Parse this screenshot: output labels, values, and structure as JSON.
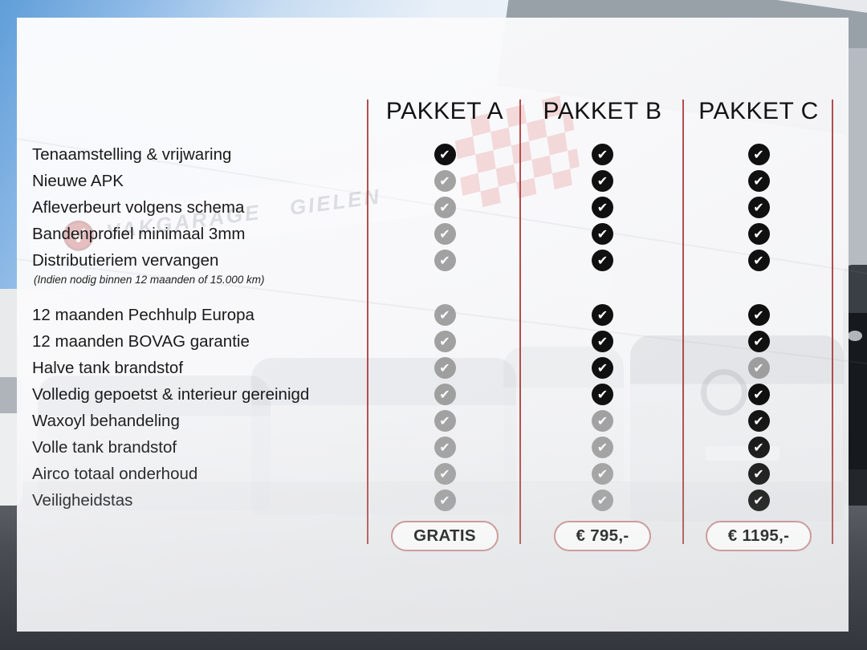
{
  "background": {
    "sign_text": "VAKGARAGE GIELEN",
    "sign_badge_letter": "V"
  },
  "table": {
    "columns": [
      "PAKKET A",
      "PAKKET B",
      "PAKKET C"
    ],
    "rows": [
      {
        "label": "Tenaamstelling & vrijwaring",
        "included": [
          true,
          true,
          true
        ]
      },
      {
        "label": "Nieuwe APK",
        "included": [
          false,
          true,
          true
        ]
      },
      {
        "label": "Afleverbeurt volgens schema",
        "included": [
          false,
          true,
          true
        ]
      },
      {
        "label": "Bandenprofiel minimaal 3mm",
        "included": [
          false,
          true,
          true
        ]
      },
      {
        "label": "Distributieriem vervangen",
        "note": "(Indien nodig binnen 12 maanden of 15.000 km)",
        "included": [
          false,
          true,
          true
        ]
      },
      {
        "label": "12 maanden Pechhulp Europa",
        "included": [
          false,
          true,
          true
        ]
      },
      {
        "label": "12 maanden BOVAG garantie",
        "included": [
          false,
          true,
          true
        ]
      },
      {
        "label": "Halve tank brandstof",
        "included": [
          false,
          true,
          false
        ]
      },
      {
        "label": "Volledig gepoetst & interieur gereinigd",
        "included": [
          false,
          true,
          true
        ]
      },
      {
        "label": "Waxoyl behandeling",
        "included": [
          false,
          false,
          true
        ]
      },
      {
        "label": "Volle tank brandstof",
        "included": [
          false,
          false,
          true
        ]
      },
      {
        "label": "Airco totaal onderhoud",
        "included": [
          false,
          false,
          true
        ]
      },
      {
        "label": "Veiligheidstas",
        "included": [
          false,
          false,
          true
        ]
      }
    ],
    "prices": [
      "GRATIS",
      "€ 795,-",
      "€ 1195,-"
    ],
    "check_icon": "✔"
  },
  "colors": {
    "line_red": "#a93c3c",
    "pill_border": "#c9908f",
    "check_on": "#101010",
    "check_off": "#8f8f8f"
  }
}
